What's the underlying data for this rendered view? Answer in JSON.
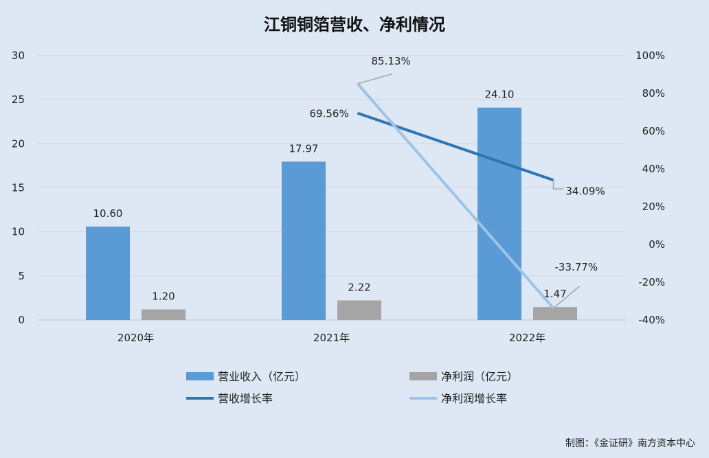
{
  "chart_data": {
    "type": "bar",
    "title": "江铜铜箔营收、净利情况",
    "categories": [
      "2020年",
      "2021年",
      "2022年"
    ],
    "y_left": {
      "min": 0,
      "max": 30,
      "step": 5,
      "ticks": [
        "0",
        "5",
        "10",
        "15",
        "20",
        "25",
        "30"
      ]
    },
    "y_right": {
      "min": -40,
      "max": 100,
      "step": 20,
      "ticks": [
        "-40%",
        "-20%",
        "0%",
        "20%",
        "40%",
        "60%",
        "80%",
        "100%"
      ]
    },
    "bar_series": [
      {
        "name": "营业收入（亿元）",
        "color": "#5b9bd5",
        "values": [
          10.6,
          17.97,
          24.1
        ],
        "labels": [
          "10.60",
          "17.97",
          "24.10"
        ]
      },
      {
        "name": "净利润（亿元）",
        "color": "#a5a5a5",
        "values": [
          1.2,
          2.22,
          1.47
        ],
        "labels": [
          "1.20",
          "2.22",
          "1.47"
        ]
      }
    ],
    "line_series": [
      {
        "name": "营收增长率",
        "color": "#2e75b6",
        "axis": "right",
        "points": [
          {
            "category": "2021年",
            "value": 69.56,
            "label": "69.56%"
          },
          {
            "category": "2022年",
            "value": 34.09,
            "label": "34.09%"
          }
        ]
      },
      {
        "name": "净利润增长率",
        "color": "#9dc3e6",
        "axis": "right",
        "points": [
          {
            "category": "2021年",
            "value": 85.13,
            "label": "85.13%"
          },
          {
            "category": "2022年",
            "value": -33.77,
            "label": "-33.77%"
          }
        ]
      }
    ],
    "grid": true,
    "legend_position": "bottom"
  },
  "credit": "制图：《金证研》南方资本中心"
}
